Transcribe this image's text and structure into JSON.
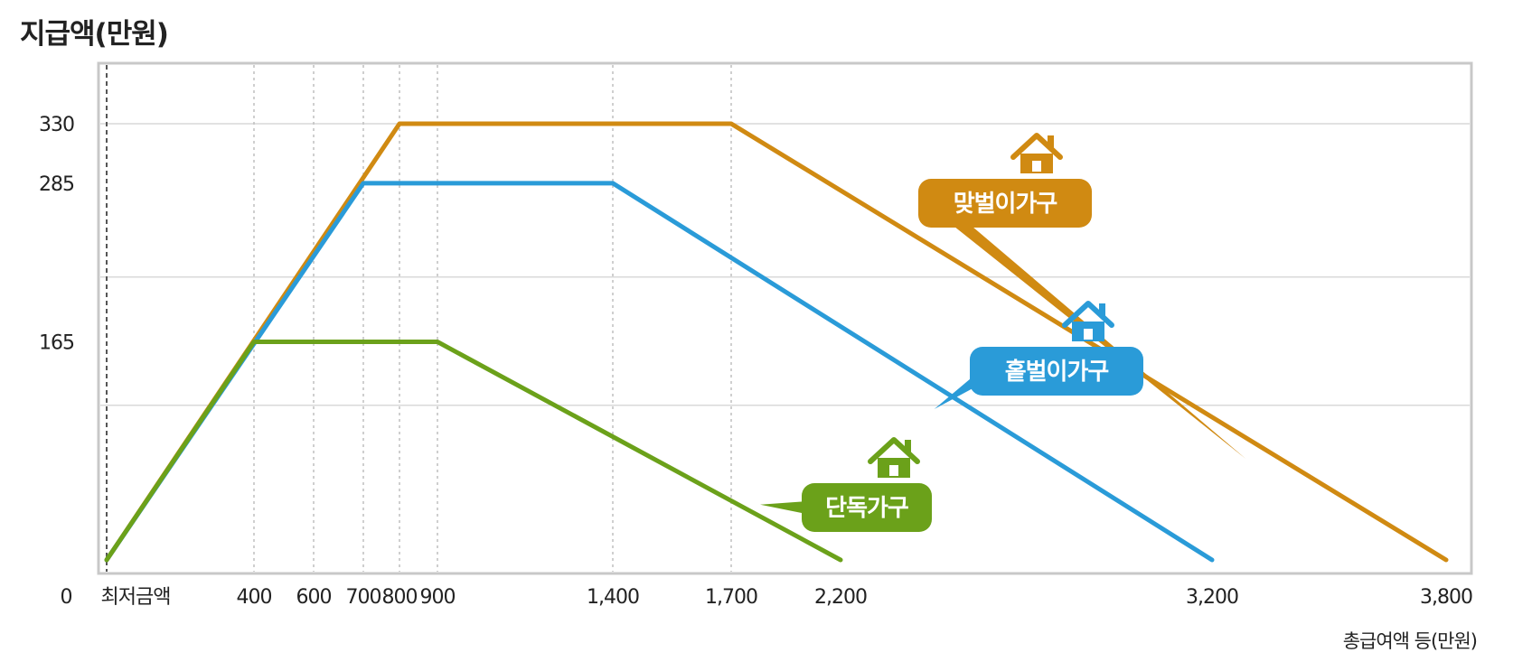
{
  "chart_data": {
    "type": "line",
    "title": "",
    "ylabel": "지급액(만원)",
    "xlabel": "총급여액 등(만원)",
    "origin_label": "0",
    "x_first_label": "최저금액",
    "x_ticks": [
      {
        "label": "400",
        "value": 400,
        "guide": true
      },
      {
        "label": "600",
        "value": 600,
        "guide": true
      },
      {
        "label": "700",
        "value": 700,
        "guide": true
      },
      {
        "label": "800",
        "value": 800,
        "guide": true
      },
      {
        "label": "900",
        "value": 900,
        "guide": true
      },
      {
        "label": "1,400",
        "value": 1400,
        "guide": true
      },
      {
        "label": "1,700",
        "value": 1700,
        "guide": true
      },
      {
        "label": "2,200",
        "value": 2200,
        "guide": false
      },
      {
        "label": "3,200",
        "value": 3200,
        "guide": false
      },
      {
        "label": "3,800",
        "value": 3800,
        "guide": false
      }
    ],
    "y_ticks": [
      {
        "label": "330",
        "value": 330
      },
      {
        "label": "285",
        "value": 285
      },
      {
        "label": "165",
        "value": 165
      }
    ],
    "ylim": [
      0,
      380
    ],
    "grid": true,
    "series": [
      {
        "name": "맞벌이가구",
        "color": "#D08A12",
        "x": [
          0,
          800,
          1700,
          3800
        ],
        "y": [
          0,
          330,
          330,
          0
        ]
      },
      {
        "name": "홑벌이가구",
        "color": "#2A9BD8",
        "x": [
          0,
          700,
          1400,
          3200
        ],
        "y": [
          0,
          285,
          285,
          0
        ]
      },
      {
        "name": "단독가구",
        "color": "#6BA11A",
        "x": [
          0,
          400,
          900,
          2200
        ],
        "y": [
          0,
          165,
          165,
          0
        ]
      }
    ]
  }
}
